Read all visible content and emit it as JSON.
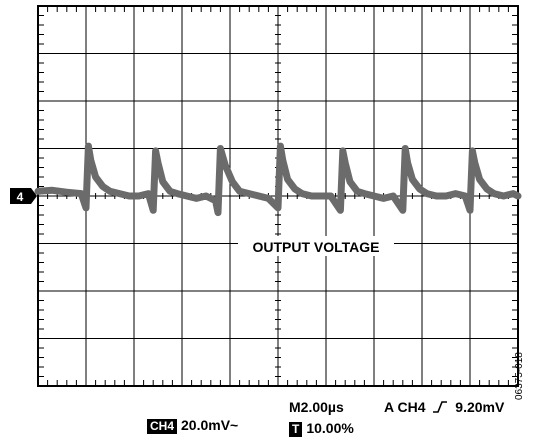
{
  "chart_data": {
    "type": "line",
    "title": "",
    "xlabel": "",
    "ylabel": "",
    "divisions": {
      "x": 10,
      "y": 8
    },
    "grid": true,
    "series": [
      {
        "name": "",
        "channel": "4",
        "color": "#6b6b6b",
        "x": [
          0,
          0.3,
          0.6,
          0.9,
          1.0,
          1.05,
          1.1,
          1.2,
          1.35,
          1.5,
          1.7,
          1.9,
          2.1,
          2.3,
          2.4,
          2.45,
          2.5,
          2.6,
          2.75,
          2.9,
          3.1,
          3.3,
          3.5,
          3.7,
          3.75,
          3.8,
          3.9,
          4.05,
          4.2,
          4.4,
          4.6,
          4.8,
          5.0,
          5.05,
          5.1,
          5.2,
          5.35,
          5.5,
          5.7,
          5.9,
          6.1,
          6.3,
          6.35,
          6.4,
          6.5,
          6.65,
          6.8,
          7.0,
          7.2,
          7.4,
          7.6,
          7.65,
          7.7,
          7.8,
          7.95,
          8.1,
          8.3,
          8.5,
          8.7,
          8.9,
          9.0,
          9.05,
          9.1,
          9.2,
          9.35,
          9.5,
          9.7,
          9.9,
          10.0
        ],
        "y": [
          0.1,
          0.12,
          0.08,
          0.05,
          -0.25,
          1.05,
          0.75,
          0.4,
          0.2,
          0.1,
          0.05,
          0.0,
          0.0,
          0.05,
          -0.3,
          0.95,
          0.7,
          0.3,
          0.1,
          0.05,
          0.0,
          -0.05,
          0.0,
          -0.1,
          -0.35,
          1.0,
          0.65,
          0.3,
          0.1,
          0.05,
          0.0,
          -0.05,
          -0.25,
          1.05,
          0.75,
          0.35,
          0.15,
          0.05,
          0.0,
          0.0,
          0.0,
          -0.3,
          0.95,
          0.7,
          0.3,
          0.1,
          0.05,
          0.0,
          -0.05,
          0.0,
          -0.3,
          1.0,
          0.7,
          0.35,
          0.15,
          0.05,
          0.0,
          0.0,
          0.05,
          0.0,
          -0.3,
          0.95,
          0.7,
          0.35,
          0.15,
          0.05,
          0.0,
          0.05,
          0.0
        ]
      }
    ],
    "annotations": {
      "waveform_label": "OUTPUT VOLTAGE",
      "channel_marker": "4"
    },
    "readout": {
      "ch_box": "CH4",
      "ch_scale": "20.0mV~",
      "timebase": "M2.00µs",
      "trigger_box": "T",
      "trigger_pos": "10.00%",
      "trigger_info": "A  CH4",
      "trigger_level": "9.20mV"
    },
    "figure_id": "06375-018"
  }
}
